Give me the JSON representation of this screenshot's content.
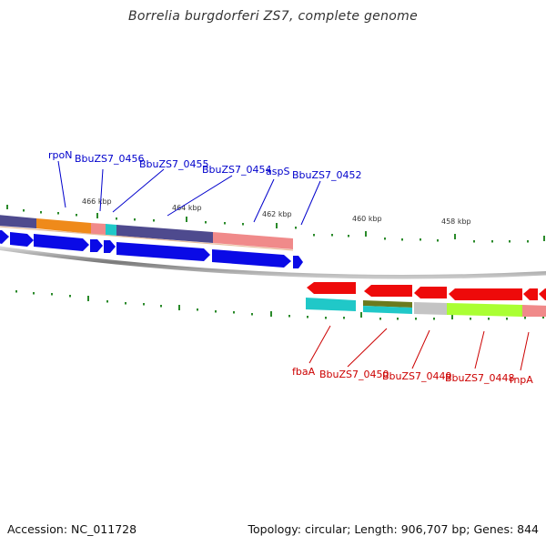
{
  "title": "Borrelia burgdorferi ZS7, complete genome",
  "footer": {
    "accession": "Accession: NC_011728",
    "summary": "Topology: circular; Length: 906,707 bp; Genes: 844"
  },
  "colors": {
    "forward_label": "#0000cc",
    "reverse_label": "#cc0000",
    "forward_arrow": "#0000ee",
    "reverse_arrow": "#ee0000",
    "tick": "#228b22",
    "backbone": "#888888"
  },
  "position_labels": [
    "466 kbp",
    "464 kbp",
    "462 kbp",
    "460 kbp",
    "458 kbp"
  ],
  "forward_gene_labels": [
    "rpoN",
    "BbuZS7_0456",
    "BbuZS7_0455",
    "BbuZS7_0454",
    "aspS",
    "BbuZS7_0452"
  ],
  "reverse_gene_labels": [
    "fbaA",
    "BbuZS7_0450",
    "BbuZS7_0449",
    "BbuZS7_0448",
    "rnpA"
  ]
}
